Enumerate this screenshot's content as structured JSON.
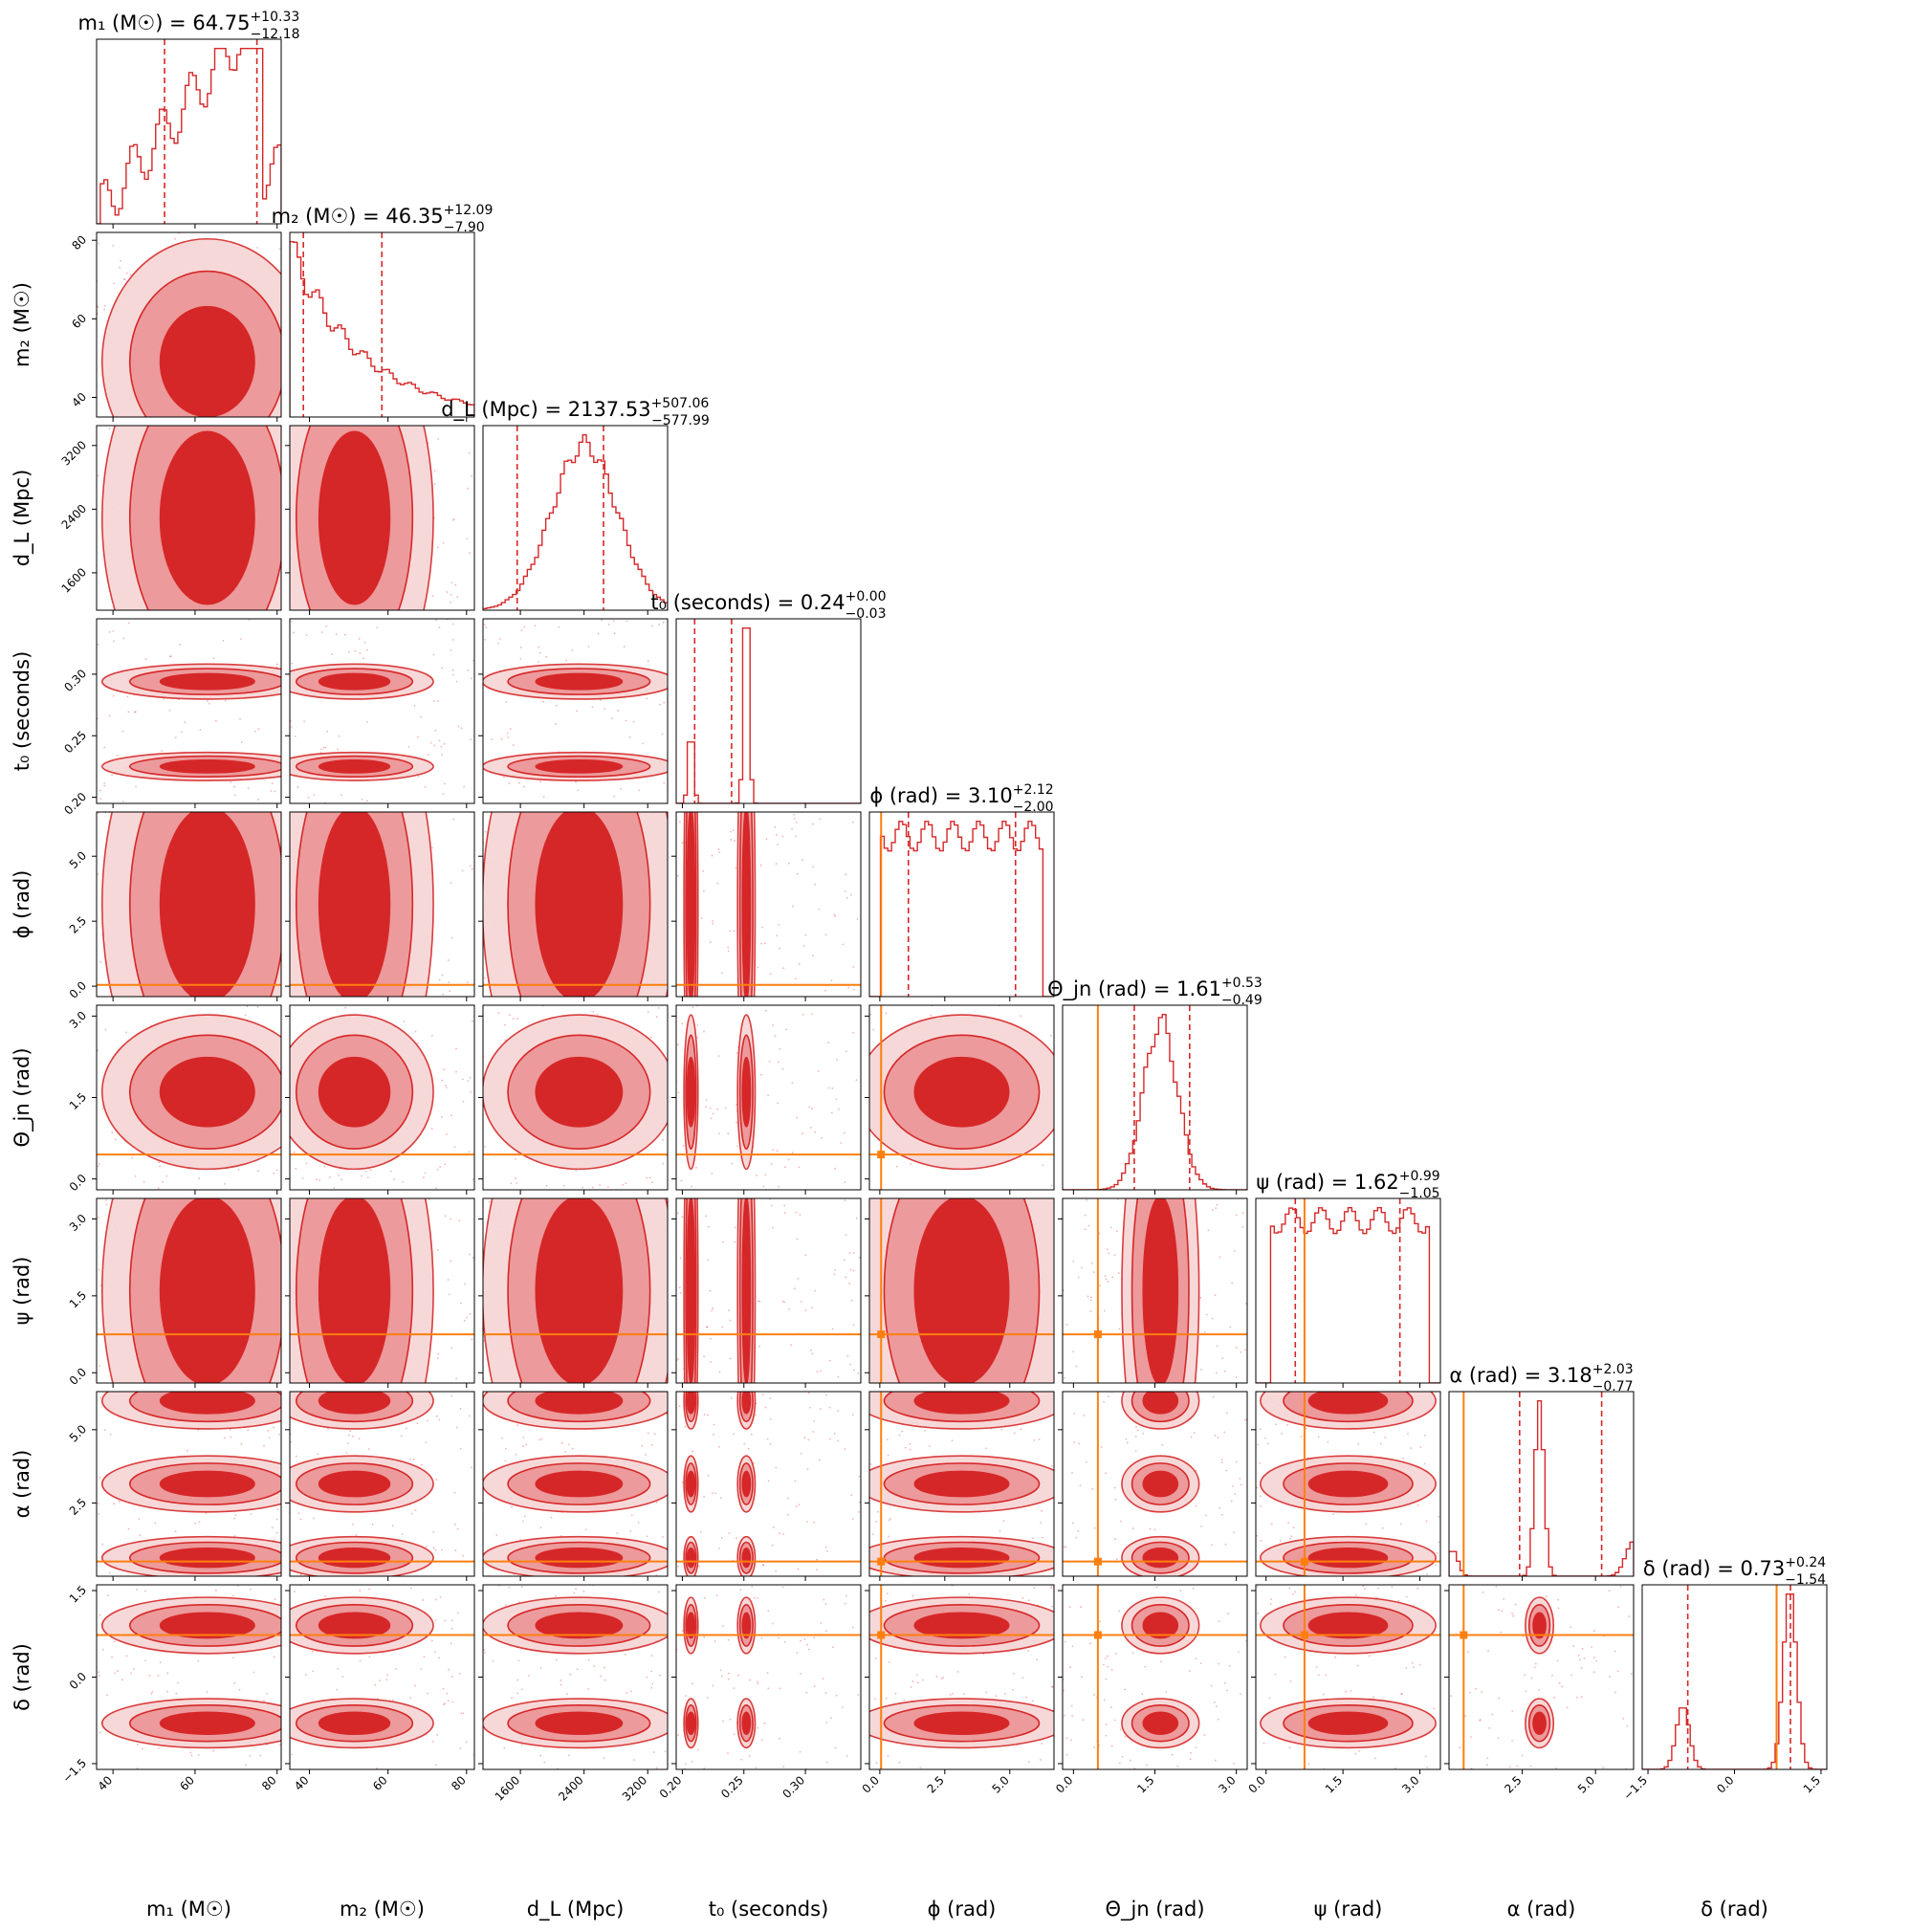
{
  "figure": {
    "parameters": [
      {
        "key": "m1",
        "label": "m₁ (M☉)",
        "title": "m₁ (M☉) = 64.75",
        "median": 64.75,
        "err_plus": "+10.33",
        "err_minus": "−12.18",
        "range": [
          36,
          81
        ],
        "ticks": [
          40,
          60,
          80
        ],
        "tick_labels": [
          "40",
          "60",
          "80"
        ],
        "injection": null
      },
      {
        "key": "m2",
        "label": "m₂ (M☉)",
        "title": "m₂ (M☉) = 46.35",
        "median": 46.35,
        "err_plus": "+12.09",
        "err_minus": "−7.90",
        "range": [
          35,
          82
        ],
        "ticks": [
          40,
          60,
          80
        ],
        "tick_labels": [
          "40",
          "60",
          "80"
        ],
        "injection": null
      },
      {
        "key": "dL",
        "label": "d_L (Mpc)",
        "title": "d_L (Mpc) = 2137.53",
        "median": 2137.53,
        "err_plus": "+507.06",
        "err_minus": "−577.99",
        "range": [
          1130,
          3450
        ],
        "ticks": [
          1600,
          2400,
          3200
        ],
        "tick_labels": [
          "1600",
          "2400",
          "3200"
        ],
        "injection": null
      },
      {
        "key": "t0",
        "label": "t₀ (seconds)",
        "title": "t₀ (seconds) = 0.24",
        "median": 0.24,
        "err_plus": "+0.00",
        "err_minus": "−0.03",
        "range": [
          0.195,
          0.345
        ],
        "ticks": [
          0.2,
          0.25,
          0.3
        ],
        "tick_labels": [
          "0.20",
          "0.25",
          "0.30"
        ],
        "injection": null
      },
      {
        "key": "phi",
        "label": "ϕ (rad)",
        "title": "ϕ (rad) = 3.10",
        "median": 3.1,
        "err_plus": "+2.12",
        "err_minus": "−2.00",
        "range": [
          -0.4,
          6.7
        ],
        "ticks": [
          0.0,
          2.5,
          5.0
        ],
        "tick_labels": [
          "0.0",
          "2.5",
          "5.0"
        ],
        "injection": 0.05
      },
      {
        "key": "theta",
        "label": "Θ_jn (rad)",
        "title": "Θ_jn (rad) = 1.61",
        "median": 1.61,
        "err_plus": "+0.53",
        "err_minus": "−0.49",
        "range": [
          -0.2,
          3.2
        ],
        "ticks": [
          0.0,
          1.5,
          3.0
        ],
        "tick_labels": [
          "0.0",
          "1.5",
          "3.0"
        ],
        "injection": 0.45
      },
      {
        "key": "psi",
        "label": "ψ (rad)",
        "title": "ψ (rad) = 1.62",
        "median": 1.62,
        "err_plus": "+0.99",
        "err_minus": "−1.05",
        "range": [
          -0.2,
          3.4
        ],
        "ticks": [
          0.0,
          1.5,
          3.0
        ],
        "tick_labels": [
          "0.0",
          "1.5",
          "3.0"
        ],
        "injection": 0.75
      },
      {
        "key": "alpha",
        "label": "α (rad)",
        "title": "α (rad) = 3.18",
        "median": 3.18,
        "err_plus": "+2.03",
        "err_minus": "−0.77",
        "range": [
          0.0,
          6.3
        ],
        "ticks": [
          2.5,
          5.0
        ],
        "tick_labels": [
          "2.5",
          "5.0"
        ],
        "injection": 0.5
      },
      {
        "key": "delta",
        "label": "δ (rad)",
        "title": "δ (rad) = 0.73",
        "median": 0.73,
        "err_plus": "+0.24",
        "err_minus": "−1.54",
        "range": [
          -1.6,
          1.6
        ],
        "ticks": [
          -1.5,
          0.0,
          1.5
        ],
        "tick_labels": [
          "−1.5",
          "0.0",
          "1.5"
        ],
        "injection": 0.73
      }
    ]
  },
  "chart_data": {
    "type": "corner",
    "series_color": "#d62728",
    "injection_color": "#ff7f0e",
    "parameter_keys": [
      "m1",
      "m2",
      "dL",
      "t0",
      "phi",
      "theta",
      "psi",
      "alpha",
      "delta"
    ],
    "quantile_lines": {
      "m1": [
        52.57,
        75.08
      ],
      "m2": [
        38.45,
        58.44
      ],
      "dL": [
        1559.54,
        2644.59
      ],
      "t0": [
        0.21,
        0.24
      ],
      "phi": [
        1.1,
        5.22
      ],
      "theta": [
        1.12,
        2.14
      ],
      "psi": [
        0.57,
        2.61
      ],
      "alpha": [
        2.41,
        5.21
      ],
      "delta": [
        -0.81,
        0.97
      ]
    },
    "histogram_peaks": {
      "m1": 76,
      "m2": 38,
      "dL": 2300,
      "t0": 0.24,
      "phi": 2.0,
      "theta": 1.6,
      "psi": 1.7,
      "alpha": 3.1,
      "delta": 0.9
    }
  }
}
